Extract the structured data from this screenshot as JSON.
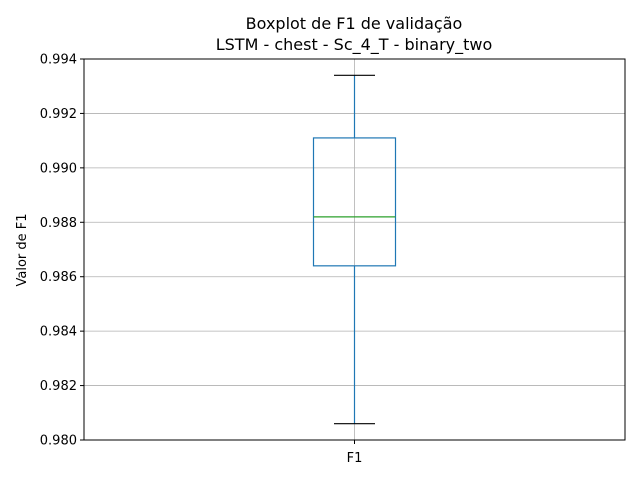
{
  "chart_data": {
    "type": "boxplot",
    "title_line1": "Boxplot de F1 de validação",
    "title_line2": "LSTM - chest - Sc_4_T - binary_two",
    "xlabel": "",
    "ylabel": "Valor de F1",
    "categories": [
      "F1"
    ],
    "ylim": [
      0.98,
      0.994
    ],
    "yticks": [
      0.98,
      0.982,
      0.984,
      0.986,
      0.988,
      0.99,
      0.992,
      0.994
    ],
    "ytick_labels": [
      "0.980",
      "0.982",
      "0.984",
      "0.986",
      "0.988",
      "0.990",
      "0.992",
      "0.994"
    ],
    "grid": true,
    "boxes": [
      {
        "label": "F1",
        "whisker_low": 0.9806,
        "q1": 0.9864,
        "median": 0.9882,
        "q3": 0.9911,
        "whisker_high": 0.9934
      }
    ],
    "colors": {
      "box": "#1f77b4",
      "median": "#2ca02c",
      "caps": "#000000",
      "grid": "#b0b0b0"
    }
  }
}
